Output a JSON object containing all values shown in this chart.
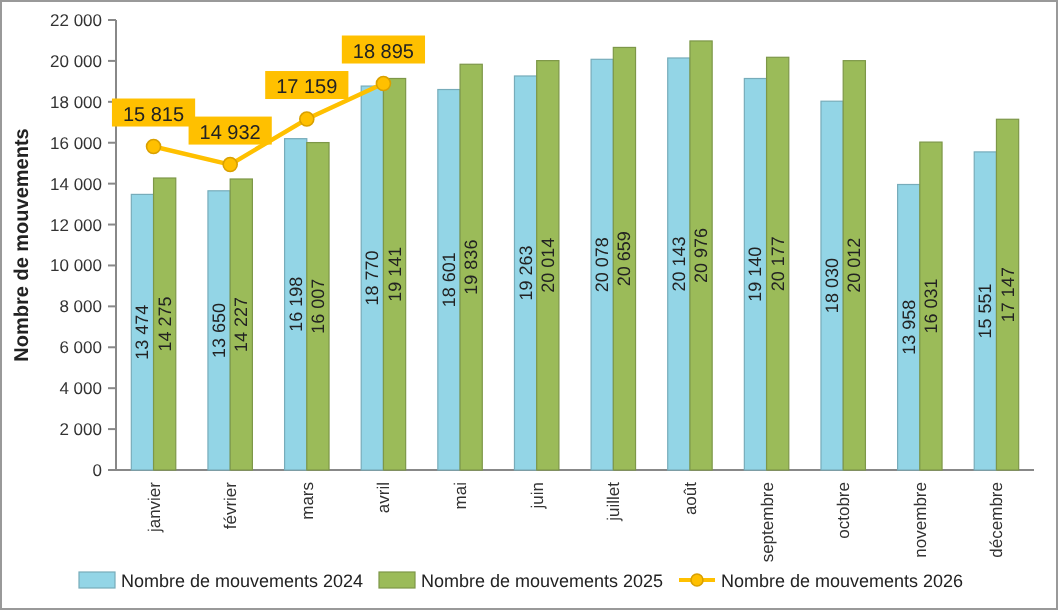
{
  "chart_data": {
    "type": "bar",
    "ylabel": "Nombre de mouvements",
    "categories": [
      "janvier",
      "février",
      "mars",
      "avril",
      "mai",
      "juin",
      "juillet",
      "août",
      "septembre",
      "octobre",
      "novembre",
      "décembre"
    ],
    "series": [
      {
        "name": "Nombre de mouvements 2024",
        "color": "#93d5e6",
        "values": [
          13474,
          13650,
          16198,
          18770,
          18601,
          19263,
          20078,
          20143,
          19140,
          18030,
          13958,
          15551
        ],
        "value_labels": [
          "13 474",
          "13 650",
          "16 198",
          "18 770",
          "18 601",
          "19 263",
          "20 078",
          "20 143",
          "19 140",
          "18 030",
          "13 958",
          "15 551"
        ]
      },
      {
        "name": "Nombre de mouvements 2025",
        "color": "#9bbb59",
        "values": [
          14275,
          14227,
          16007,
          19141,
          19836,
          20014,
          20659,
          20976,
          20177,
          20012,
          16031,
          17147
        ],
        "value_labels": [
          "14 275",
          "14 227",
          "16 007",
          "19 141",
          "19 836",
          "20 014",
          "20 659",
          "20 976",
          "20 177",
          "20 012",
          "16 031",
          "17 147"
        ]
      },
      {
        "name": "Nombre de mouvements 2026",
        "type": "line",
        "color": "#ffc000",
        "marker": "circle",
        "values": [
          15815,
          14932,
          17159,
          18895,
          null,
          null,
          null,
          null,
          null,
          null,
          null,
          null
        ],
        "value_labels": [
          "15 815",
          "14 932",
          "17 159",
          "18 895",
          null,
          null,
          null,
          null,
          null,
          null,
          null,
          null
        ]
      }
    ],
    "ylim": [
      0,
      22000
    ],
    "yticks": [
      {
        "value": 0,
        "label": "0"
      },
      {
        "value": 2000,
        "label": "2 000"
      },
      {
        "value": 4000,
        "label": "4 000"
      },
      {
        "value": 6000,
        "label": "6 000"
      },
      {
        "value": 8000,
        "label": "8 000"
      },
      {
        "value": 10000,
        "label": "10 000"
      },
      {
        "value": 12000,
        "label": "12 000"
      },
      {
        "value": 14000,
        "label": "14 000"
      },
      {
        "value": 16000,
        "label": "16 000"
      },
      {
        "value": 18000,
        "label": "18 000"
      },
      {
        "value": 20000,
        "label": "20 000"
      },
      {
        "value": 22000,
        "label": "22 000"
      }
    ],
    "grid": false,
    "legend": "bottom"
  }
}
